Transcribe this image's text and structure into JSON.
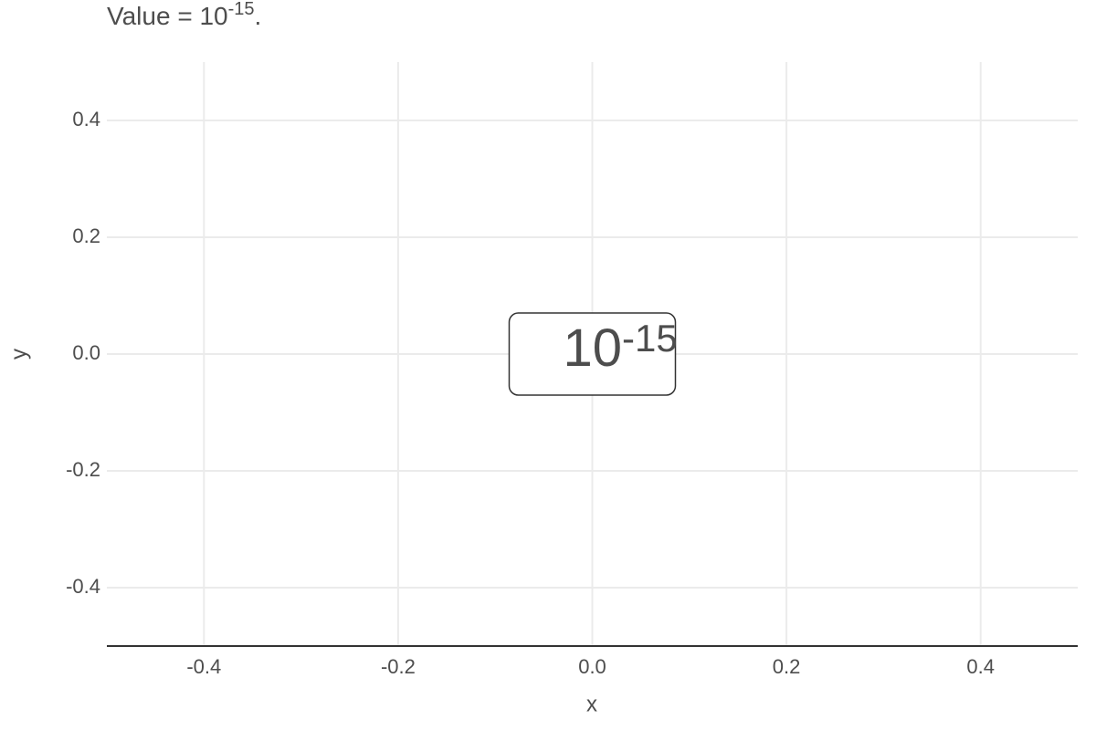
{
  "chart_data": {
    "type": "label",
    "title": {
      "text": "Value = 10",
      "exponent": "-15",
      "end": "."
    },
    "x_label": "x",
    "y_label": "y",
    "x": [
      0
    ],
    "y": [
      0
    ],
    "labels": [
      {
        "base": "10",
        "exponent": "-15"
      }
    ],
    "xlim": [
      -0.5,
      0.5
    ],
    "ylim": [
      -0.5,
      0.5
    ],
    "xticks": [
      -0.4,
      -0.2,
      {
        "value": 0,
        "label": "0.0"
      },
      0.2,
      0.4
    ],
    "yticks": [
      -0.4,
      -0.2,
      {
        "value": 0,
        "label": "0.0"
      },
      0.2,
      0.4
    ],
    "grid": true,
    "text_color": "#4d4d4d",
    "grid_color": "#ebebeb",
    "axis_color": "#333333"
  }
}
